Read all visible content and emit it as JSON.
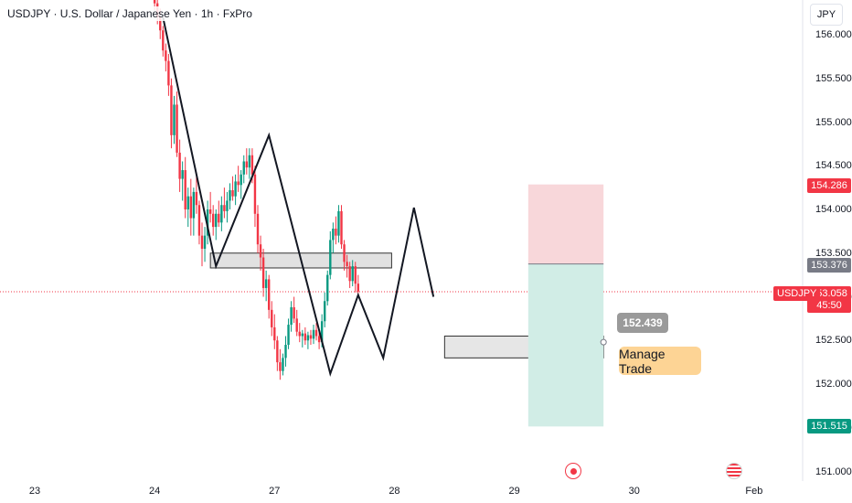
{
  "header": {
    "title": "USDJPY · U.S. Dollar / Japanese Yen · 1h · FxPro",
    "currency": "JPY"
  },
  "price_labels": {
    "symbol": "USDJPY",
    "current": "153.058",
    "countdown": "45:50",
    "stop": "154.286",
    "entry": "153.376",
    "target": "151.515",
    "crosshair": "152.439",
    "manage_trade": "Manage Trade"
  },
  "colors": {
    "up": "#089981",
    "down": "#f23645",
    "stop_zone": "#f8d7da",
    "target_zone": "#d1ede6",
    "gray_badge": "#787b86",
    "current_price": "#f23645",
    "target_badge": "#089981"
  },
  "events": [
    {
      "icon": "jp-flag-icon",
      "time_index": 200
    },
    {
      "icon": "us-flag-icon",
      "time_index": 258
    }
  ],
  "chart_data": {
    "type": "candlestick",
    "title": "USDJPY · U.S. Dollar / Japanese Yen · 1h · FxPro",
    "xlabel": "",
    "ylabel": "",
    "ylim": [
      150.95,
      156.35
    ],
    "y_ticks": [
      151.0,
      151.5,
      152.0,
      152.5,
      153.0,
      153.5,
      154.0,
      154.5,
      155.0,
      155.5,
      156.0
    ],
    "y_tick_labels": [
      "151.000",
      "151.500",
      "152.000",
      "152.500",
      "153.000",
      "153.500",
      "154.000",
      "154.500",
      "155.000",
      "155.500",
      "156.000"
    ],
    "x_ticks": [
      {
        "label": "23",
        "time_index": 0
      },
      {
        "label": "24",
        "time_index": 43
      },
      {
        "label": "27",
        "time_index": 86
      },
      {
        "label": "28",
        "time_index": 129
      },
      {
        "label": "29",
        "time_index": 172
      },
      {
        "label": "30",
        "time_index": 215
      },
      {
        "label": "Feb",
        "time_index": 258
      }
    ],
    "candles": [
      [
        43,
        156.55,
        156.62,
        156.28,
        156.36
      ],
      [
        44,
        156.36,
        156.42,
        156.12,
        156.2
      ],
      [
        45,
        156.2,
        156.3,
        155.95,
        156.05
      ],
      [
        46,
        156.05,
        156.1,
        155.75,
        155.82
      ],
      [
        47,
        155.82,
        155.9,
        155.58,
        155.7
      ],
      [
        48,
        155.7,
        155.78,
        155.3,
        155.42
      ],
      [
        49,
        155.42,
        155.5,
        154.7,
        154.85
      ],
      [
        50,
        154.85,
        155.3,
        154.75,
        155.2
      ],
      [
        51,
        155.2,
        155.35,
        154.6,
        154.65
      ],
      [
        52,
        154.65,
        154.8,
        154.2,
        154.35
      ],
      [
        53,
        154.35,
        154.55,
        154.1,
        154.45
      ],
      [
        54,
        154.45,
        154.6,
        153.9,
        154.0
      ],
      [
        55,
        154.0,
        154.25,
        153.8,
        154.15
      ],
      [
        56,
        154.15,
        154.35,
        153.7,
        153.9
      ],
      [
        57,
        153.9,
        154.25,
        153.7,
        154.2
      ],
      [
        58,
        154.2,
        154.4,
        153.95,
        154.05
      ],
      [
        59,
        154.05,
        154.1,
        153.6,
        153.7
      ],
      [
        60,
        153.7,
        153.85,
        153.35,
        153.55
      ],
      [
        61,
        153.55,
        153.8,
        153.4,
        153.7
      ],
      [
        62,
        153.7,
        154.1,
        153.6,
        154.0
      ],
      [
        63,
        154.0,
        154.2,
        153.85,
        153.95
      ],
      [
        64,
        153.95,
        154.05,
        153.7,
        153.8
      ],
      [
        65,
        153.8,
        154.0,
        153.65,
        153.95
      ],
      [
        66,
        153.95,
        154.1,
        153.8,
        153.85
      ],
      [
        67,
        153.85,
        154.15,
        153.75,
        154.05
      ],
      [
        68,
        154.05,
        154.25,
        153.9,
        153.98
      ],
      [
        69,
        153.98,
        154.2,
        153.85,
        154.1
      ],
      [
        70,
        154.1,
        154.3,
        154.0,
        154.22
      ],
      [
        71,
        154.22,
        154.38,
        154.1,
        154.15
      ],
      [
        72,
        154.15,
        154.4,
        154.05,
        154.32
      ],
      [
        73,
        154.32,
        154.5,
        154.2,
        154.28
      ],
      [
        74,
        154.28,
        154.45,
        154.12,
        154.4
      ],
      [
        75,
        154.4,
        154.62,
        154.3,
        154.55
      ],
      [
        76,
        154.55,
        154.7,
        154.4,
        154.48
      ],
      [
        77,
        154.48,
        154.7,
        154.35,
        154.62
      ],
      [
        78,
        154.62,
        154.7,
        154.3,
        154.4
      ],
      [
        79,
        154.4,
        154.5,
        153.8,
        153.95
      ],
      [
        80,
        153.95,
        154.05,
        153.5,
        153.6
      ],
      [
        81,
        153.6,
        153.7,
        153.3,
        153.45
      ],
      [
        82,
        153.45,
        153.55,
        153.0,
        153.1
      ],
      [
        83,
        153.1,
        153.3,
        152.95,
        153.2
      ],
      [
        84,
        153.2,
        153.25,
        152.75,
        152.85
      ],
      [
        85,
        152.85,
        152.95,
        152.55,
        152.65
      ],
      [
        86,
        152.65,
        152.8,
        152.4,
        152.5
      ],
      [
        87,
        152.5,
        152.55,
        152.15,
        152.25
      ],
      [
        88,
        152.25,
        152.4,
        152.05,
        152.15
      ],
      [
        89,
        152.15,
        152.35,
        152.1,
        152.3
      ],
      [
        90,
        152.3,
        152.55,
        152.2,
        152.45
      ],
      [
        91,
        152.45,
        152.75,
        152.4,
        152.68
      ],
      [
        92,
        152.68,
        152.95,
        152.6,
        152.88
      ],
      [
        93,
        152.88,
        153.0,
        152.7,
        152.75
      ],
      [
        94,
        152.75,
        152.85,
        152.55,
        152.6
      ],
      [
        95,
        152.6,
        152.7,
        152.48,
        152.55
      ],
      [
        96,
        152.55,
        152.62,
        152.42,
        152.58
      ],
      [
        97,
        152.58,
        152.65,
        152.45,
        152.5
      ],
      [
        98,
        152.5,
        152.6,
        152.4,
        152.56
      ],
      [
        99,
        152.56,
        152.62,
        152.45,
        152.52
      ],
      [
        100,
        152.52,
        152.68,
        152.46,
        152.62
      ],
      [
        101,
        152.62,
        152.7,
        152.5,
        152.55
      ],
      [
        102,
        152.55,
        152.62,
        152.4,
        152.48
      ],
      [
        103,
        152.48,
        152.8,
        152.42,
        152.72
      ],
      [
        104,
        152.72,
        153.05,
        152.65,
        152.95
      ],
      [
        105,
        152.95,
        153.3,
        152.9,
        153.25
      ],
      [
        106,
        153.25,
        153.75,
        153.2,
        153.65
      ],
      [
        107,
        153.65,
        153.85,
        153.5,
        153.78
      ],
      [
        108,
        153.78,
        153.92,
        153.6,
        153.7
      ],
      [
        109,
        153.7,
        154.05,
        153.62,
        153.98
      ],
      [
        110,
        153.98,
        154.05,
        153.55,
        153.6
      ],
      [
        111,
        153.6,
        153.65,
        153.3,
        153.4
      ],
      [
        112,
        153.4,
        153.48,
        153.22,
        153.35
      ],
      [
        113,
        153.35,
        153.4,
        153.1,
        153.18
      ],
      [
        114,
        153.18,
        153.42,
        153.12,
        153.35
      ],
      [
        115,
        153.35,
        153.4,
        153.05,
        153.15
      ],
      [
        116,
        153.15,
        153.25,
        153.0,
        153.06
      ]
    ]
  }
}
